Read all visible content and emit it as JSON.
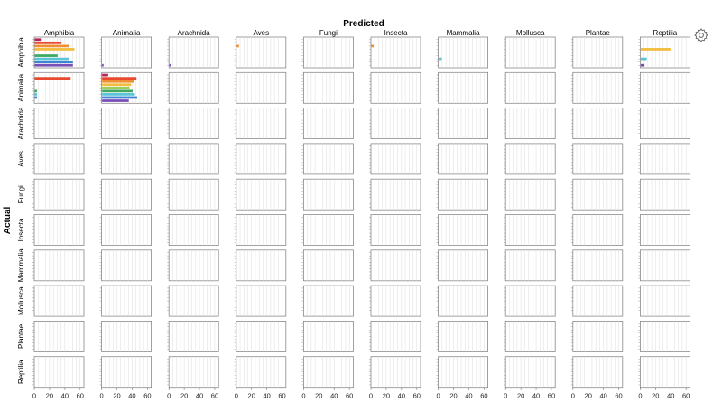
{
  "chart_data": {
    "type": "bar",
    "layout": "facet-grid",
    "orientation": "horizontal",
    "title_x": "Predicted",
    "title_y": "Actual",
    "classes": [
      "Amphibia",
      "Animalia",
      "Arachnida",
      "Aves",
      "Fungi",
      "Insecta",
      "Mammalia",
      "Mollusca",
      "Plantae",
      "Reptilia"
    ],
    "x_ticks": [
      0,
      20,
      40,
      60
    ],
    "xlim": [
      0,
      65
    ],
    "series_colors": [
      "#b5245b",
      "#e8492f",
      "#f08f32",
      "#f2bd3c",
      "#9fcd59",
      "#3fa861",
      "#5bc4d6",
      "#3e84d3",
      "#7a4eb8"
    ],
    "cells": [
      [
        [
          8,
          35,
          45,
          52,
          0,
          30,
          45,
          50,
          50
        ],
        [
          0,
          0,
          0,
          0,
          0,
          0,
          0,
          0,
          2
        ],
        [
          0,
          0,
          0,
          0,
          0,
          0,
          0,
          0,
          2
        ],
        [
          0,
          0,
          3,
          0,
          0,
          0,
          0,
          0,
          0
        ],
        [
          0,
          0,
          0,
          0,
          0,
          0,
          0,
          0,
          0
        ],
        [
          0,
          0,
          3,
          0,
          0,
          0,
          0,
          0,
          0
        ],
        [
          0,
          0,
          0,
          0,
          0,
          0,
          4,
          0,
          0
        ],
        [
          0,
          0,
          0,
          0,
          0,
          0,
          0,
          0,
          0
        ],
        [
          0,
          0,
          0,
          0,
          0,
          0,
          0,
          0,
          0
        ],
        [
          0,
          0,
          0,
          39,
          0,
          0,
          8,
          0,
          5
        ]
      ],
      [
        [
          0,
          47,
          0,
          0,
          0,
          3,
          3,
          3,
          0
        ],
        [
          8,
          45,
          42,
          38,
          36,
          40,
          43,
          46,
          35
        ],
        [
          0,
          0,
          0,
          0,
          0,
          0,
          0,
          0,
          0
        ],
        [
          0,
          0,
          0,
          0,
          0,
          0,
          0,
          0,
          0
        ],
        [
          0,
          0,
          0,
          0,
          0,
          0,
          0,
          0,
          0
        ],
        [
          0,
          0,
          0,
          0,
          0,
          0,
          0,
          0,
          0
        ],
        [
          0,
          0,
          0,
          0,
          0,
          0,
          0,
          0,
          0
        ],
        [
          0,
          0,
          0,
          0,
          0,
          0,
          0,
          0,
          0
        ],
        [
          0,
          0,
          0,
          0,
          0,
          0,
          0,
          0,
          0
        ],
        [
          0,
          0,
          0,
          0,
          0,
          0,
          0,
          0,
          0
        ]
      ],
      [
        [
          0,
          0,
          0,
          0,
          0,
          0,
          0,
          0,
          0
        ],
        [
          0,
          0,
          0,
          0,
          0,
          0,
          0,
          0,
          0
        ],
        [
          0,
          0,
          0,
          0,
          0,
          0,
          0,
          0,
          0
        ],
        [
          0,
          0,
          0,
          0,
          0,
          0,
          0,
          0,
          0
        ],
        [
          0,
          0,
          0,
          0,
          0,
          0,
          0,
          0,
          0
        ],
        [
          0,
          0,
          0,
          0,
          0,
          0,
          0,
          0,
          0
        ],
        [
          0,
          0,
          0,
          0,
          0,
          0,
          0,
          0,
          0
        ],
        [
          0,
          0,
          0,
          0,
          0,
          0,
          0,
          0,
          0
        ],
        [
          0,
          0,
          0,
          0,
          0,
          0,
          0,
          0,
          0
        ],
        [
          0,
          0,
          0,
          0,
          0,
          0,
          0,
          0,
          0
        ]
      ],
      [
        [
          0,
          0,
          0,
          0,
          0,
          0,
          0,
          0,
          0
        ],
        [
          0,
          0,
          0,
          0,
          0,
          0,
          0,
          0,
          0
        ],
        [
          0,
          0,
          0,
          0,
          0,
          0,
          0,
          0,
          0
        ],
        [
          0,
          0,
          0,
          0,
          0,
          0,
          0,
          0,
          0
        ],
        [
          0,
          0,
          0,
          0,
          0,
          0,
          0,
          0,
          0
        ],
        [
          0,
          0,
          0,
          0,
          0,
          0,
          0,
          0,
          0
        ],
        [
          0,
          0,
          0,
          0,
          0,
          0,
          0,
          0,
          0
        ],
        [
          0,
          0,
          0,
          0,
          0,
          0,
          0,
          0,
          0
        ],
        [
          0,
          0,
          0,
          0,
          0,
          0,
          0,
          0,
          0
        ],
        [
          0,
          0,
          0,
          0,
          0,
          0,
          0,
          0,
          0
        ]
      ],
      [
        [
          0,
          0,
          0,
          0,
          0,
          0,
          0,
          0,
          0
        ],
        [
          0,
          0,
          0,
          0,
          0,
          0,
          0,
          0,
          0
        ],
        [
          0,
          0,
          0,
          0,
          0,
          0,
          0,
          0,
          0
        ],
        [
          0,
          0,
          0,
          0,
          0,
          0,
          0,
          0,
          0
        ],
        [
          0,
          0,
          0,
          0,
          0,
          0,
          0,
          0,
          0
        ],
        [
          0,
          0,
          0,
          0,
          0,
          0,
          0,
          0,
          0
        ],
        [
          0,
          0,
          0,
          0,
          0,
          0,
          0,
          0,
          0
        ],
        [
          0,
          0,
          0,
          0,
          0,
          0,
          0,
          0,
          0
        ],
        [
          0,
          0,
          0,
          0,
          0,
          0,
          0,
          0,
          0
        ],
        [
          0,
          0,
          0,
          0,
          0,
          0,
          0,
          0,
          0
        ]
      ],
      [
        [
          0,
          0,
          0,
          0,
          0,
          0,
          0,
          0,
          0
        ],
        [
          0,
          0,
          0,
          0,
          0,
          0,
          0,
          0,
          0
        ],
        [
          0,
          0,
          0,
          0,
          0,
          0,
          0,
          0,
          0
        ],
        [
          0,
          0,
          0,
          0,
          0,
          0,
          0,
          0,
          0
        ],
        [
          0,
          0,
          0,
          0,
          0,
          0,
          0,
          0,
          0
        ],
        [
          0,
          0,
          0,
          0,
          0,
          0,
          0,
          0,
          0
        ],
        [
          0,
          0,
          0,
          0,
          0,
          0,
          0,
          0,
          0
        ],
        [
          0,
          0,
          0,
          0,
          0,
          0,
          0,
          0,
          0
        ],
        [
          0,
          0,
          0,
          0,
          0,
          0,
          0,
          0,
          0
        ],
        [
          0,
          0,
          0,
          0,
          0,
          0,
          0,
          0,
          0
        ]
      ],
      [
        [
          0,
          0,
          0,
          0,
          0,
          0,
          0,
          0,
          0
        ],
        [
          0,
          0,
          0,
          0,
          0,
          0,
          0,
          0,
          0
        ],
        [
          0,
          0,
          0,
          0,
          0,
          0,
          0,
          0,
          0
        ],
        [
          0,
          0,
          0,
          0,
          0,
          0,
          0,
          0,
          0
        ],
        [
          0,
          0,
          0,
          0,
          0,
          0,
          0,
          0,
          0
        ],
        [
          0,
          0,
          0,
          0,
          0,
          0,
          0,
          0,
          0
        ],
        [
          0,
          0,
          0,
          0,
          0,
          0,
          0,
          0,
          0
        ],
        [
          0,
          0,
          0,
          0,
          0,
          0,
          0,
          0,
          0
        ],
        [
          0,
          0,
          0,
          0,
          0,
          0,
          0,
          0,
          0
        ],
        [
          0,
          0,
          0,
          0,
          0,
          0,
          0,
          0,
          0
        ]
      ],
      [
        [
          0,
          0,
          0,
          0,
          0,
          0,
          0,
          0,
          0
        ],
        [
          0,
          0,
          0,
          0,
          0,
          0,
          0,
          0,
          0
        ],
        [
          0,
          0,
          0,
          0,
          0,
          0,
          0,
          0,
          0
        ],
        [
          0,
          0,
          0,
          0,
          0,
          0,
          0,
          0,
          0
        ],
        [
          0,
          0,
          0,
          0,
          0,
          0,
          0,
          0,
          0
        ],
        [
          0,
          0,
          0,
          0,
          0,
          0,
          0,
          0,
          0
        ],
        [
          0,
          0,
          0,
          0,
          0,
          0,
          0,
          0,
          0
        ],
        [
          0,
          0,
          0,
          0,
          0,
          0,
          0,
          0,
          0
        ],
        [
          0,
          0,
          0,
          0,
          0,
          0,
          0,
          0,
          0
        ],
        [
          0,
          0,
          0,
          0,
          0,
          0,
          0,
          0,
          0
        ]
      ],
      [
        [
          0,
          0,
          0,
          0,
          0,
          0,
          0,
          0,
          0
        ],
        [
          0,
          0,
          0,
          0,
          0,
          0,
          0,
          0,
          0
        ],
        [
          0,
          0,
          0,
          0,
          0,
          0,
          0,
          0,
          0
        ],
        [
          0,
          0,
          0,
          0,
          0,
          0,
          0,
          0,
          0
        ],
        [
          0,
          0,
          0,
          0,
          0,
          0,
          0,
          0,
          0
        ],
        [
          0,
          0,
          0,
          0,
          0,
          0,
          0,
          0,
          0
        ],
        [
          0,
          0,
          0,
          0,
          0,
          0,
          0,
          0,
          0
        ],
        [
          0,
          0,
          0,
          0,
          0,
          0,
          0,
          0,
          0
        ],
        [
          0,
          0,
          0,
          0,
          0,
          0,
          0,
          0,
          0
        ],
        [
          0,
          0,
          0,
          0,
          0,
          0,
          0,
          0,
          0
        ]
      ],
      [
        [
          0,
          0,
          0,
          0,
          0,
          0,
          0,
          0,
          0
        ],
        [
          0,
          0,
          0,
          0,
          0,
          0,
          0,
          0,
          0
        ],
        [
          0,
          0,
          0,
          0,
          0,
          0,
          0,
          0,
          0
        ],
        [
          0,
          0,
          0,
          0,
          0,
          0,
          0,
          0,
          0
        ],
        [
          0,
          0,
          0,
          0,
          0,
          0,
          0,
          0,
          0
        ],
        [
          0,
          0,
          0,
          0,
          0,
          0,
          0,
          0,
          0
        ],
        [
          0,
          0,
          0,
          0,
          0,
          0,
          0,
          0,
          0
        ],
        [
          0,
          0,
          0,
          0,
          0,
          0,
          0,
          0,
          0
        ],
        [
          0,
          0,
          0,
          0,
          0,
          0,
          0,
          0,
          0
        ],
        [
          0,
          0,
          0,
          0,
          0,
          0,
          0,
          0,
          0
        ]
      ]
    ]
  }
}
